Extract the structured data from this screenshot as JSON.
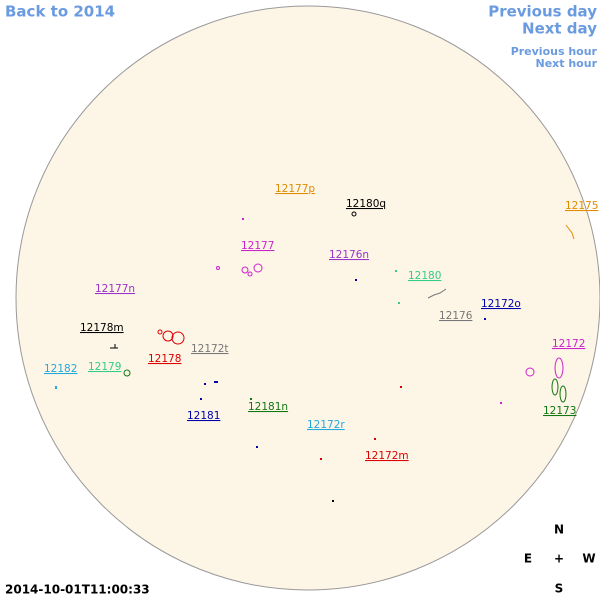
{
  "nav": {
    "back": "Back to 2014",
    "previous_day": "Previous day",
    "next_day": "Next day",
    "previous_hour": "Previous hour",
    "next_hour": "Next hour"
  },
  "regions": [
    {
      "label": "12177p",
      "color": "#e08c00"
    },
    {
      "label": "12180q",
      "color": "#000000"
    },
    {
      "label": "12175",
      "color": "#e08c00"
    },
    {
      "label": "12177",
      "color": "#cc22cc"
    },
    {
      "label": "12176n",
      "color": "#9933cc"
    },
    {
      "label": "12180",
      "color": "#33cc88"
    },
    {
      "label": "12177n",
      "color": "#9933cc"
    },
    {
      "label": "12172o",
      "color": "#0000aa"
    },
    {
      "label": "12176",
      "color": "#777777"
    },
    {
      "label": "12178m",
      "color": "#000000"
    },
    {
      "label": "12178",
      "color": "#dd0000"
    },
    {
      "label": "12172t",
      "color": "#777777"
    },
    {
      "label": "12172",
      "color": "#cc22cc"
    },
    {
      "label": "12182",
      "color": "#22aadd"
    },
    {
      "label": "12179",
      "color": "#33cc88"
    },
    {
      "label": "12181n",
      "color": "#117711"
    },
    {
      "label": "12181",
      "color": "#0000aa"
    },
    {
      "label": "12172r",
      "color": "#22aadd"
    },
    {
      "label": "12173",
      "color": "#117711"
    },
    {
      "label": "12172m",
      "color": "#dd0000"
    }
  ],
  "timestamp": "2014-10-01T11:00:33",
  "compass": {
    "n": "N",
    "e": "E",
    "center": "+",
    "w": "W",
    "s": "S"
  }
}
